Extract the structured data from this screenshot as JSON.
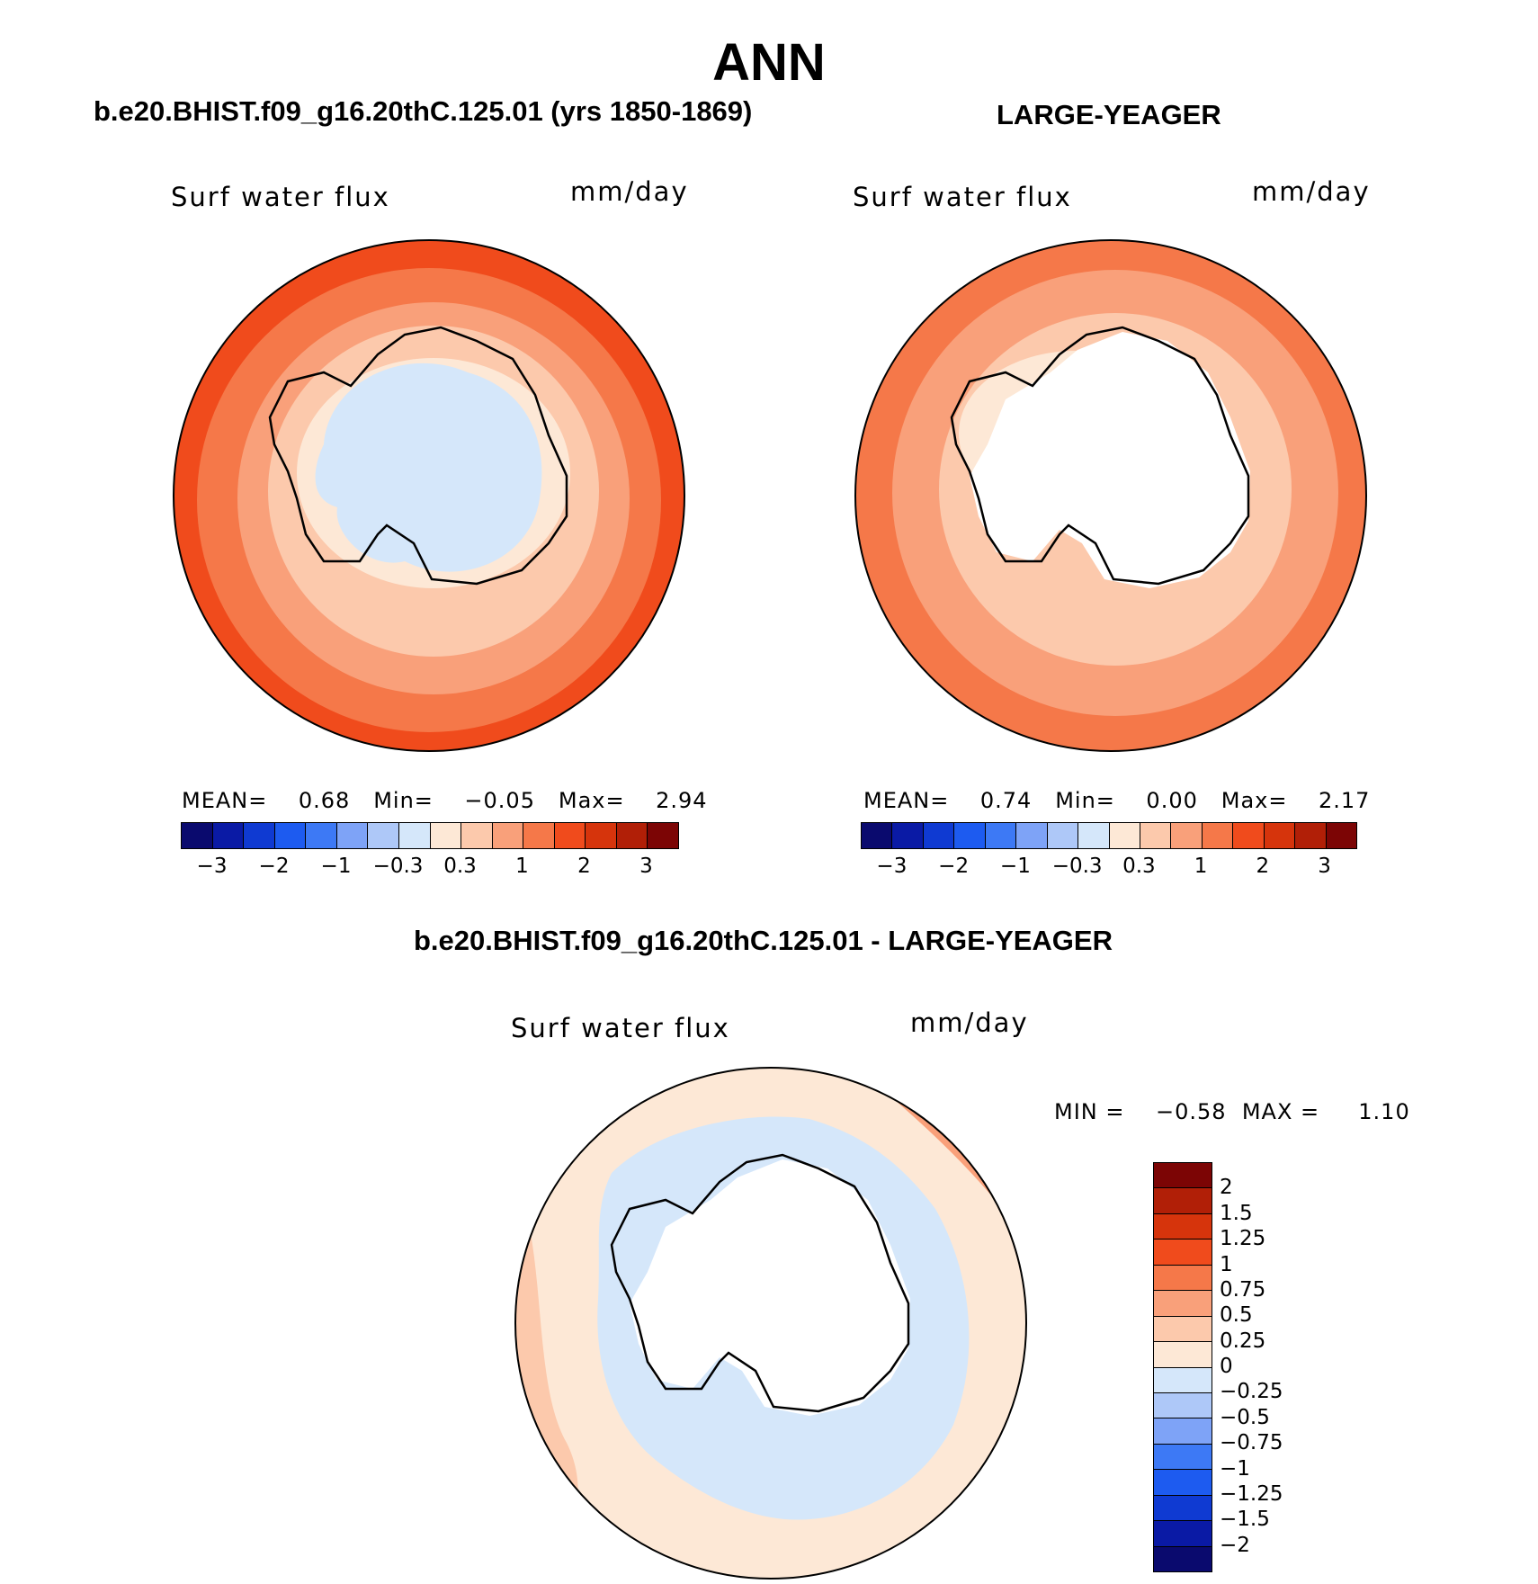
{
  "figure": {
    "title": "ANN"
  },
  "panels": {
    "left": {
      "title": "b.e20.BHIST.f09_g16.20thC.125.01 (yrs 1850-1869)",
      "variable": "Surf  water  flux",
      "units": "mm/day",
      "stats": {
        "mean_label": "MEAN=",
        "mean": "0.68",
        "min_label": "Min=",
        "min": "−0.05",
        "max_label": "Max=",
        "max": "2.94"
      }
    },
    "right": {
      "title": "LARGE-YEAGER",
      "variable": "Surf  water  flux",
      "units": "mm/day",
      "stats": {
        "mean_label": "MEAN=",
        "mean": "0.74",
        "min_label": "Min=",
        "min": "0.00",
        "max_label": "Max=",
        "max": "2.17"
      }
    },
    "diff": {
      "title": "b.e20.BHIST.f09_g16.20thC.125.01 - LARGE-YEAGER",
      "variable": "Surf  water  flux",
      "units": "mm/day",
      "minmax": {
        "min_label": "MIN =",
        "min": "−0.58",
        "max_label": "MAX =",
        "max": "1.10"
      }
    }
  },
  "colorbar_main": {
    "colors": [
      "#0a0a6e",
      "#0a1aa5",
      "#0f3ad2",
      "#1d5bf0",
      "#3d79f5",
      "#7ea3f7",
      "#aec8f8",
      "#d5e7fa",
      "#fde8d6",
      "#fcc9ac",
      "#f9a07a",
      "#f57849",
      "#f04b1c",
      "#d6340c",
      "#b11f07",
      "#7c0505"
    ],
    "ticks": [
      "−3",
      "−2",
      "−1",
      "−0.3",
      "0.3",
      "1",
      "2",
      "3"
    ]
  },
  "colorbar_diff": {
    "colors": [
      "#7c0505",
      "#b11f07",
      "#d6340c",
      "#f04b1c",
      "#f57849",
      "#f9a07a",
      "#fcc9ac",
      "#fde8d6",
      "#d5e7fa",
      "#aec8f8",
      "#7ea3f7",
      "#3d79f5",
      "#1d5bf0",
      "#0f3ad2",
      "#0a1aa5",
      "#0a0a6e"
    ],
    "ticks": [
      "2",
      "1.5",
      "1.25",
      "1",
      "0.75",
      "0.5",
      "0.25",
      "0",
      "−0.25",
      "−0.5",
      "−0.75",
      "−1",
      "−1.25",
      "−1.5",
      "−2"
    ]
  },
  "map_colors": {
    "land": "#ffffff",
    "outline": "#000000",
    "left_layers": [
      "#f04b1c",
      "#f57849",
      "#f9a07a",
      "#fcc9ac",
      "#fde8d6",
      "#d5e7fa"
    ],
    "right_layers": [
      "#f57849",
      "#f9a07a",
      "#fcc9ac",
      "#fde8d6"
    ],
    "diff_layers": [
      "#fcc9ac",
      "#fde8d6",
      "#d5e7fa",
      "#aec8f8"
    ]
  }
}
